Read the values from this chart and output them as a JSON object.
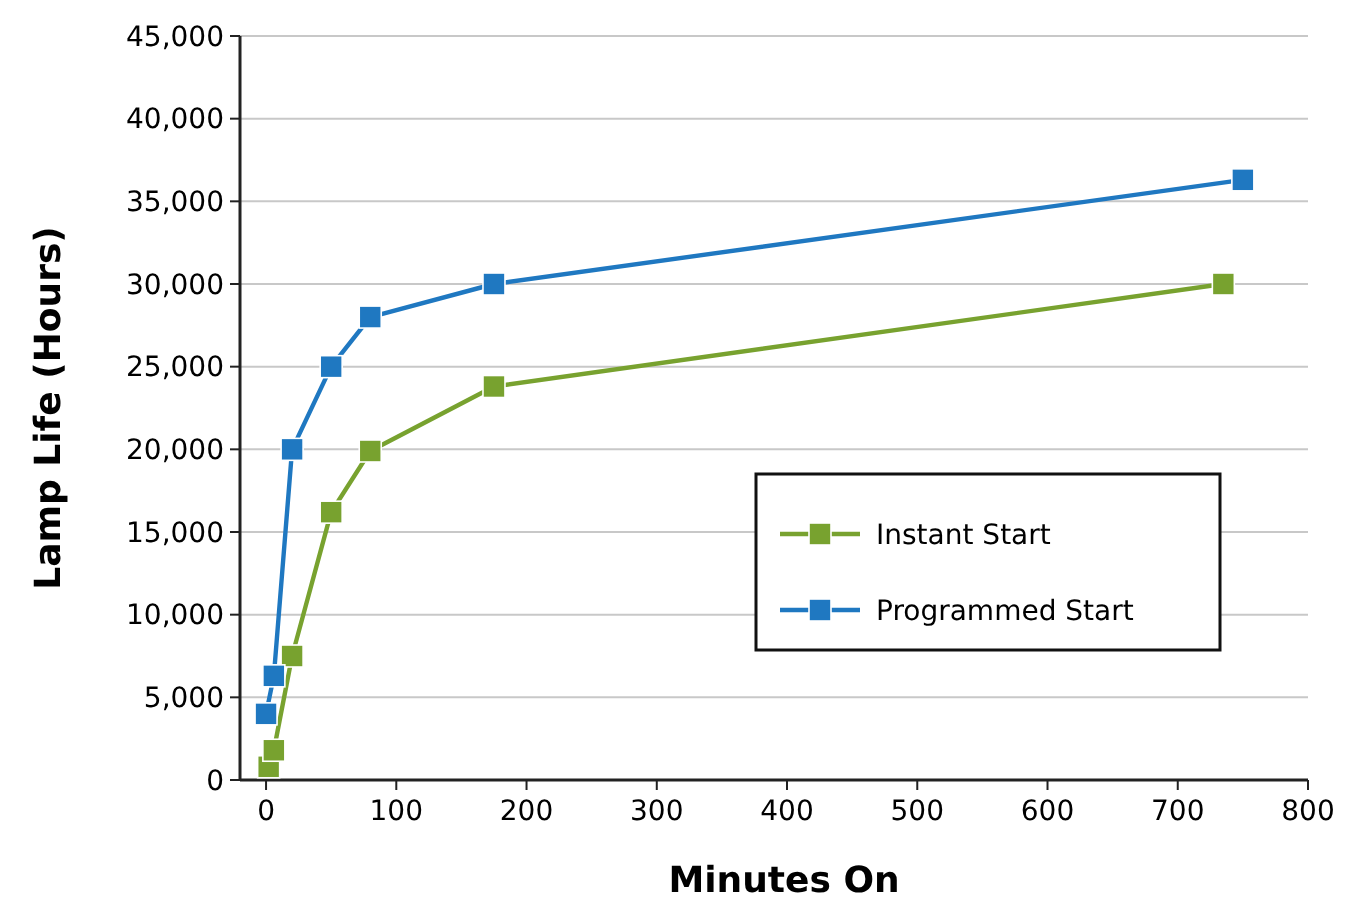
{
  "chart_data": {
    "type": "line",
    "xlabel": "Minutes On",
    "ylabel": "Lamp Life (Hours)",
    "xlim": [
      -20,
      800
    ],
    "xticks": [
      0,
      100,
      200,
      300,
      400,
      500,
      600,
      700,
      800
    ],
    "ylim": [
      0,
      45000
    ],
    "yticks": [
      {
        "value": 0,
        "label": "0"
      },
      {
        "value": 5000,
        "label": "5,000"
      },
      {
        "value": 10000,
        "label": "10,000"
      },
      {
        "value": 15000,
        "label": "15,000"
      },
      {
        "value": 20000,
        "label": "20,000"
      },
      {
        "value": 25000,
        "label": "25,000"
      },
      {
        "value": 30000,
        "label": "30,000"
      },
      {
        "value": 35000,
        "label": "35,000"
      },
      {
        "value": 40000,
        "label": "40,000"
      },
      {
        "value": 45000,
        "label": "45,000"
      }
    ],
    "series": [
      {
        "name": "Instant Start",
        "color": "#78a22f",
        "x": [
          2,
          6,
          20,
          50,
          80,
          175,
          735
        ],
        "values": [
          800,
          1800,
          7500,
          16200,
          19900,
          23800,
          30000
        ]
      },
      {
        "name": "Programmed Start",
        "color": "#1f78c1",
        "x": [
          0,
          6,
          20,
          50,
          80,
          175,
          750
        ],
        "values": [
          4000,
          6300,
          20000,
          25000,
          28000,
          30000,
          36300
        ]
      }
    ],
    "grid": "y",
    "legend": "right",
    "marker": "square",
    "line_style": "solid"
  }
}
